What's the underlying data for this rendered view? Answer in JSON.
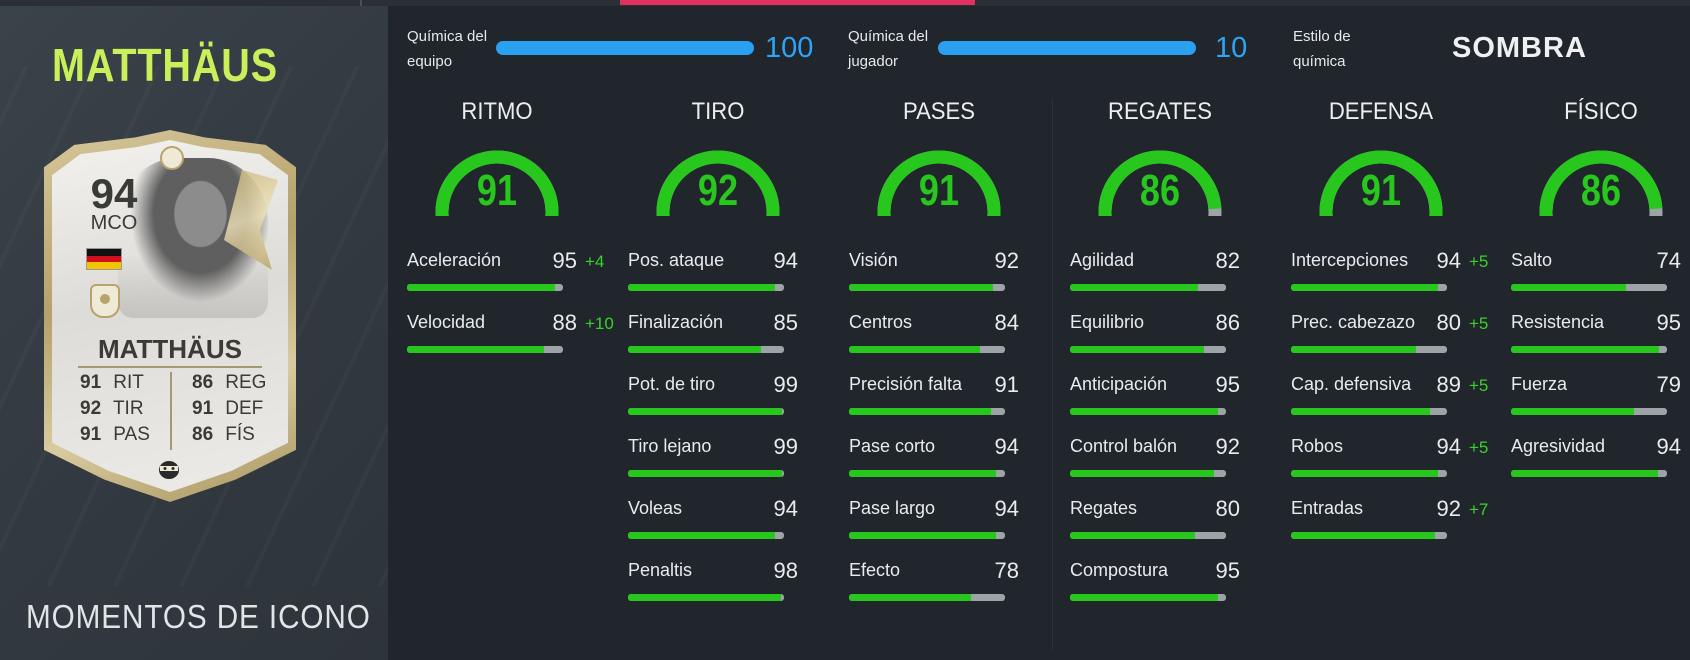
{
  "player": {
    "name": "MATTHÄUS",
    "card_name": "MATTHÄUS",
    "rating": "94",
    "position": "MCO",
    "set": "MOMENTOS DE ICONO",
    "card_stats": [
      {
        "value": "91",
        "label": "RIT"
      },
      {
        "value": "92",
        "label": "TIR"
      },
      {
        "value": "91",
        "label": "PAS"
      },
      {
        "value": "86",
        "label": "REG"
      },
      {
        "value": "91",
        "label": "DEF"
      },
      {
        "value": "86",
        "label": "FÍS"
      }
    ],
    "nation_colors": [
      "#111111",
      "#d20f1c",
      "#f5c400"
    ]
  },
  "chemistry": {
    "team": {
      "label_1": "Química del",
      "label_2": "equipo",
      "value": "100",
      "level": 1.0
    },
    "player": {
      "label_1": "Química del",
      "label_2": "jugador",
      "value": "10",
      "level": 1.0
    },
    "style": {
      "label_1": "Estilo de",
      "label_2": "química",
      "value": "SOMBRA"
    },
    "bar_color": "#2b9ff0"
  },
  "colors": {
    "accent_green": "#27c71e",
    "title_green": "#c9f05a",
    "top_accent": "#e0315f"
  },
  "groups": [
    {
      "title": "RITMO",
      "value": "91",
      "stats": [
        {
          "name": "Aceleración",
          "value": "95",
          "bonus": "+4"
        },
        {
          "name": "Velocidad",
          "value": "88",
          "bonus": "+10"
        }
      ]
    },
    {
      "title": "TIRO",
      "value": "92",
      "stats": [
        {
          "name": "Pos. ataque",
          "value": "94",
          "bonus": ""
        },
        {
          "name": "Finalización",
          "value": "85",
          "bonus": ""
        },
        {
          "name": "Pot. de tiro",
          "value": "99",
          "bonus": ""
        },
        {
          "name": "Tiro lejano",
          "value": "99",
          "bonus": ""
        },
        {
          "name": "Voleas",
          "value": "94",
          "bonus": ""
        },
        {
          "name": "Penaltis",
          "value": "98",
          "bonus": ""
        }
      ]
    },
    {
      "title": "PASES",
      "value": "91",
      "stats": [
        {
          "name": "Visión",
          "value": "92",
          "bonus": ""
        },
        {
          "name": "Centros",
          "value": "84",
          "bonus": ""
        },
        {
          "name": "Precisión falta",
          "value": "91",
          "bonus": ""
        },
        {
          "name": "Pase corto",
          "value": "94",
          "bonus": ""
        },
        {
          "name": "Pase largo",
          "value": "94",
          "bonus": ""
        },
        {
          "name": "Efecto",
          "value": "78",
          "bonus": ""
        }
      ]
    },
    {
      "title": "REGATES",
      "value": "86",
      "stats": [
        {
          "name": "Agilidad",
          "value": "82",
          "bonus": ""
        },
        {
          "name": "Equilibrio",
          "value": "86",
          "bonus": ""
        },
        {
          "name": "Anticipación",
          "value": "95",
          "bonus": ""
        },
        {
          "name": "Control balón",
          "value": "92",
          "bonus": ""
        },
        {
          "name": "Regates",
          "value": "80",
          "bonus": ""
        },
        {
          "name": "Compostura",
          "value": "95",
          "bonus": ""
        }
      ]
    },
    {
      "title": "DEFENSA",
      "value": "91",
      "stats": [
        {
          "name": "Intercepciones",
          "value": "94",
          "bonus": "+5"
        },
        {
          "name": "Prec. cabezazo",
          "value": "80",
          "bonus": "+5"
        },
        {
          "name": "Cap. defensiva",
          "value": "89",
          "bonus": "+5"
        },
        {
          "name": "Robos",
          "value": "94",
          "bonus": "+5"
        },
        {
          "name": "Entradas",
          "value": "92",
          "bonus": "+7"
        }
      ]
    },
    {
      "title": "FÍSICO",
      "value": "86",
      "stats": [
        {
          "name": "Salto",
          "value": "74",
          "bonus": ""
        },
        {
          "name": "Resistencia",
          "value": "95",
          "bonus": ""
        },
        {
          "name": "Fuerza",
          "value": "79",
          "bonus": ""
        },
        {
          "name": "Agresividad",
          "value": "94",
          "bonus": ""
        }
      ]
    }
  ]
}
